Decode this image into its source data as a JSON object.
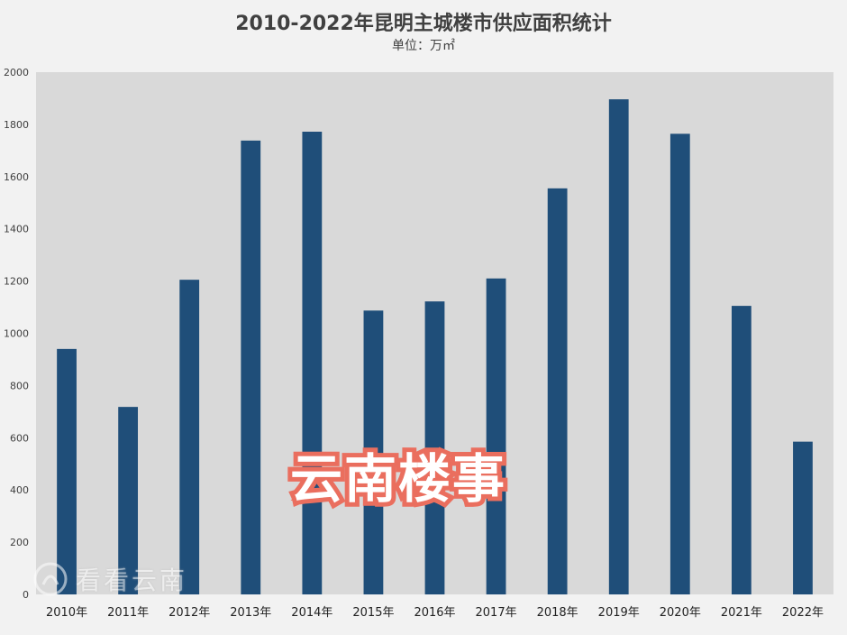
{
  "chart_data": {
    "type": "bar",
    "title": "2010-2022年昆明主城楼市供应面积统计",
    "subtitle": "单位：万㎡",
    "categories": [
      "2010年",
      "2011年",
      "2012年",
      "2013年",
      "2014年",
      "2015年",
      "2016年",
      "2017年",
      "2018年",
      "2019年",
      "2020年",
      "2021年",
      "2022年"
    ],
    "values": [
      940,
      718,
      1205,
      1738,
      1772,
      1087,
      1122,
      1210,
      1555,
      1896,
      1764,
      1105,
      585
    ],
    "ylim": [
      0,
      2000
    ],
    "yticks": [
      0,
      200,
      400,
      600,
      800,
      1000,
      1200,
      1400,
      1600,
      1800,
      2000
    ],
    "grid": false,
    "bar_color": "#1f4e79",
    "plot_bg": "#d9d9d9"
  },
  "watermarks": {
    "main_text": "云南楼事",
    "logo_text": "看看云南",
    "main_stroke_color": "#ea6f5f"
  }
}
